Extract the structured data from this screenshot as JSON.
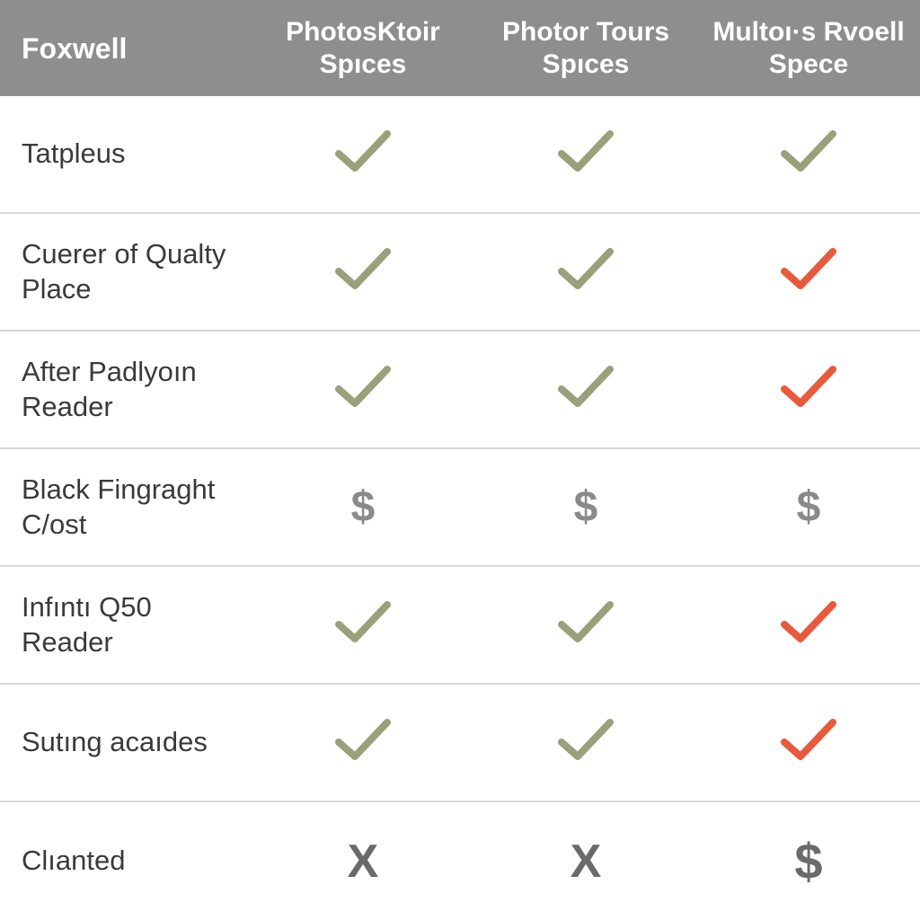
{
  "table": {
    "type": "comparison-table",
    "header_bg": "#8e8e8e",
    "header_fg": "#ffffff",
    "row_border_color": "#d8d8d8",
    "label_text_color": "#3a3a3a",
    "check_olive_color": "#9aa07a",
    "check_red_color": "#e85a3c",
    "dollar_color": "#8a8a8a",
    "x_color": "#6a6a6a",
    "header_label": "Foxwell",
    "columns": [
      "PhotosKtoir Spıces",
      "Photor Tours Spıces",
      "Multoı·s Rvoell Spece"
    ],
    "rows": [
      {
        "label": "Tatpleus",
        "cells": [
          "check-olive",
          "check-olive",
          "check-olive"
        ]
      },
      {
        "label": "Cuerer of Qualty Place",
        "cells": [
          "check-olive",
          "check-olive",
          "check-red"
        ]
      },
      {
        "label": "After Padlyoın Reader",
        "cells": [
          "check-olive",
          "check-olive",
          "check-red"
        ]
      },
      {
        "label": "Black Fingraght C/ost",
        "cells": [
          "dollar",
          "dollar",
          "dollar"
        ]
      },
      {
        "label": "Infıntı Q50 Reader",
        "cells": [
          "check-olive",
          "check-olive",
          "check-red"
        ]
      },
      {
        "label": "Sutıng acaıdes",
        "cells": [
          "check-olive",
          "check-olive",
          "check-red"
        ]
      },
      {
        "label": "Clıanted",
        "cells": [
          "x-mark",
          "x-mark",
          "dollar-big"
        ]
      }
    ]
  }
}
